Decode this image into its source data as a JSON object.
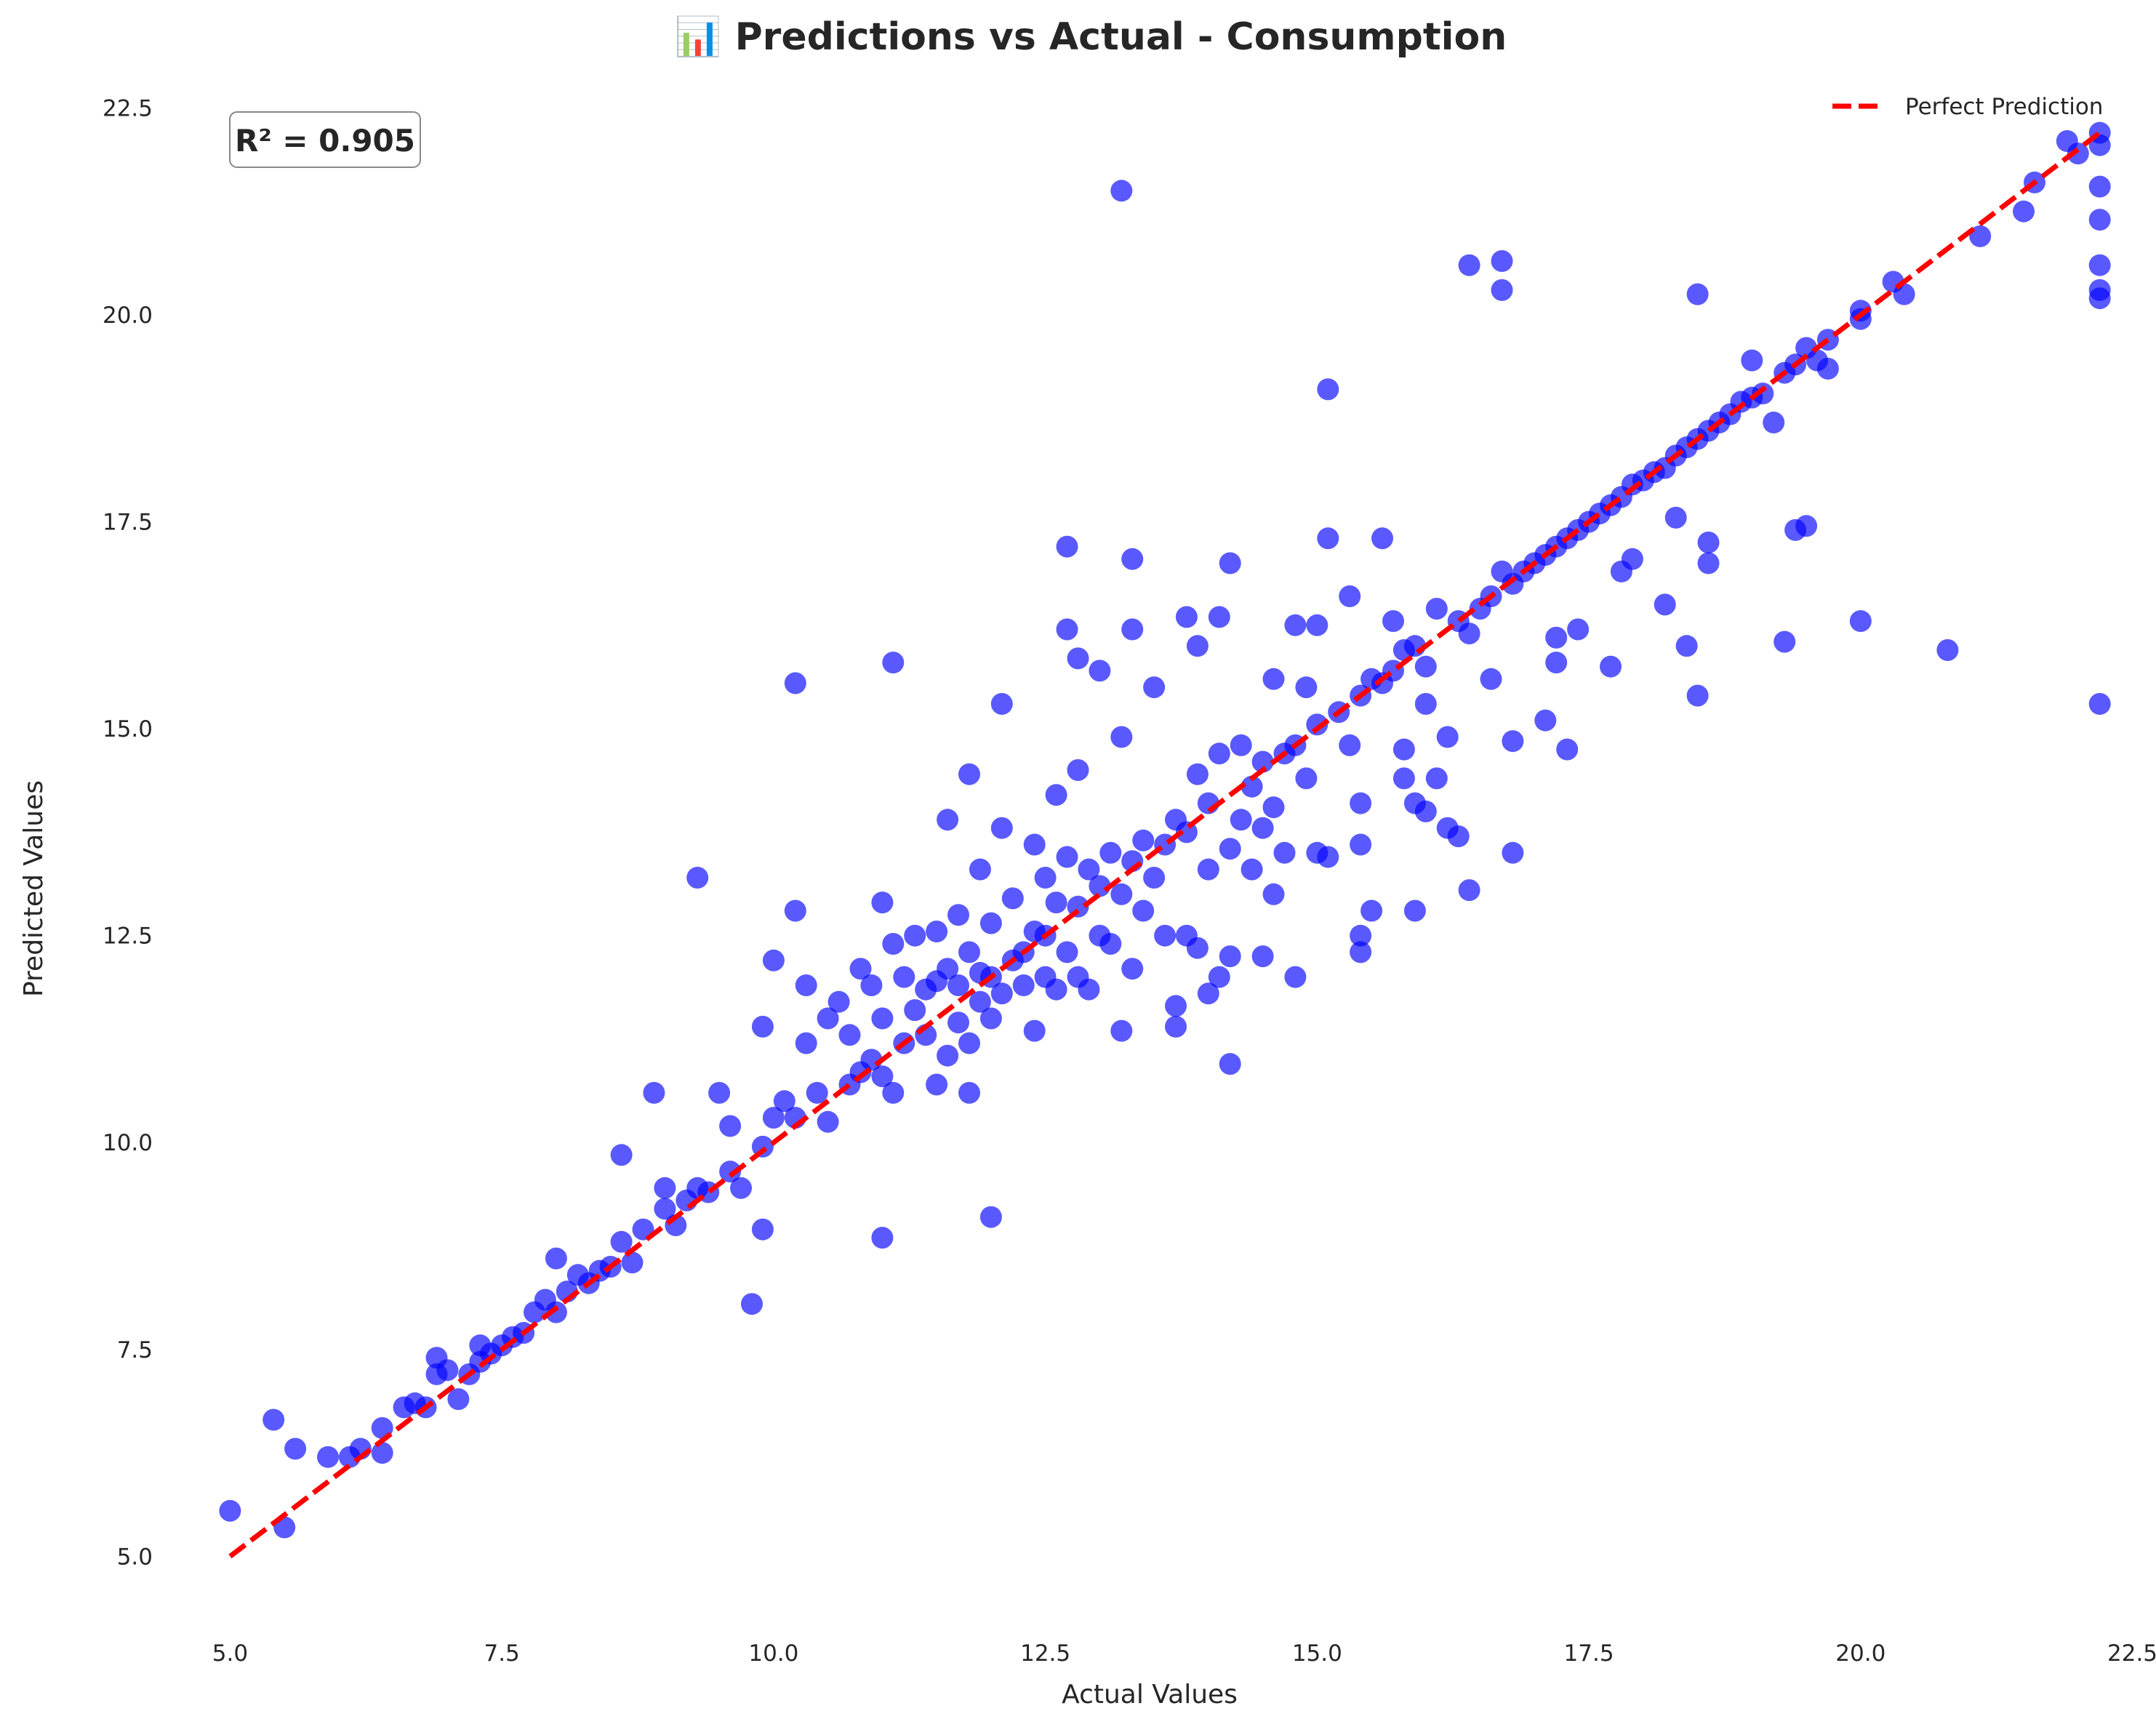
{
  "chart_data": {
    "type": "scatter",
    "title": "📊 Predictions vs Actual - Consumption",
    "xlabel": "Actual Values",
    "ylabel": "Predicted Values",
    "xlim": [
      4.85,
      22.55
    ],
    "ylim": [
      4.3,
      22.75
    ],
    "xticks": [
      "5.0",
      "7.5",
      "10.0",
      "12.5",
      "15.0",
      "17.5",
      "20.0",
      "22.5"
    ],
    "yticks": [
      "5.0",
      "7.5",
      "10.0",
      "12.5",
      "15.0",
      "17.5",
      "20.0",
      "22.5"
    ],
    "grid": false,
    "legend": {
      "placement": "top-right",
      "entries": [
        "Perfect Prediction"
      ]
    },
    "annotation": "R² = 0.905",
    "series": [
      {
        "name": "Perfect Prediction",
        "kind": "line",
        "color": "#ff0000",
        "style": "dashed",
        "x": [
          5.0,
          22.2
        ],
        "y": [
          5.0,
          22.2
        ]
      },
      {
        "kind": "scatter",
        "color": "#0000ff",
        "opacity": 0.65,
        "points": [
          [
            5.0,
            5.55
          ],
          [
            5.4,
            6.65
          ],
          [
            5.5,
            5.35
          ],
          [
            5.6,
            6.3
          ],
          [
            5.9,
            6.2
          ],
          [
            6.1,
            6.2
          ],
          [
            6.2,
            6.3
          ],
          [
            6.4,
            6.25
          ],
          [
            6.4,
            6.55
          ],
          [
            6.6,
            6.8
          ],
          [
            6.7,
            6.85
          ],
          [
            6.8,
            6.8
          ],
          [
            6.9,
            7.2
          ],
          [
            6.9,
            7.4
          ],
          [
            7.0,
            7.25
          ],
          [
            7.1,
            6.9
          ],
          [
            7.2,
            7.2
          ],
          [
            7.3,
            7.35
          ],
          [
            7.3,
            7.55
          ],
          [
            7.4,
            7.45
          ],
          [
            7.5,
            7.55
          ],
          [
            7.6,
            7.65
          ],
          [
            7.7,
            7.7
          ],
          [
            7.8,
            7.95
          ],
          [
            7.9,
            8.1
          ],
          [
            8.0,
            7.95
          ],
          [
            8.0,
            8.6
          ],
          [
            8.1,
            8.2
          ],
          [
            8.2,
            8.4
          ],
          [
            8.3,
            8.3
          ],
          [
            8.4,
            8.45
          ],
          [
            8.5,
            8.5
          ],
          [
            8.6,
            8.8
          ],
          [
            8.6,
            9.85
          ],
          [
            8.7,
            8.55
          ],
          [
            8.8,
            8.95
          ],
          [
            8.9,
            10.6
          ],
          [
            9.0,
            9.2
          ],
          [
            9.0,
            9.45
          ],
          [
            9.1,
            9.0
          ],
          [
            9.2,
            9.3
          ],
          [
            9.3,
            9.45
          ],
          [
            9.3,
            13.2
          ],
          [
            9.4,
            9.4
          ],
          [
            9.5,
            10.6
          ],
          [
            9.6,
            9.65
          ],
          [
            9.6,
            10.2
          ],
          [
            9.7,
            9.45
          ],
          [
            9.8,
            8.05
          ],
          [
            9.9,
            8.95
          ],
          [
            9.9,
            9.95
          ],
          [
            9.9,
            11.4
          ],
          [
            10.0,
            10.3
          ],
          [
            10.0,
            12.2
          ],
          [
            10.1,
            10.5
          ],
          [
            10.2,
            10.3
          ],
          [
            10.2,
            12.8
          ],
          [
            10.2,
            15.55
          ],
          [
            10.3,
            11.2
          ],
          [
            10.3,
            11.9
          ],
          [
            10.4,
            10.6
          ],
          [
            10.5,
            11.5
          ],
          [
            10.5,
            10.25
          ],
          [
            10.6,
            11.7
          ],
          [
            10.7,
            10.7
          ],
          [
            10.7,
            11.3
          ],
          [
            10.8,
            10.85
          ],
          [
            10.8,
            12.1
          ],
          [
            10.9,
            11.0
          ],
          [
            10.9,
            11.9
          ],
          [
            11.0,
            8.85
          ],
          [
            11.0,
            10.8
          ],
          [
            11.0,
            11.5
          ],
          [
            11.0,
            12.9
          ],
          [
            11.1,
            10.6
          ],
          [
            11.1,
            12.4
          ],
          [
            11.1,
            15.8
          ],
          [
            11.2,
            11.2
          ],
          [
            11.2,
            12.0
          ],
          [
            11.3,
            11.6
          ],
          [
            11.3,
            12.5
          ],
          [
            11.4,
            11.3
          ],
          [
            11.4,
            11.85
          ],
          [
            11.5,
            10.7
          ],
          [
            11.5,
            11.95
          ],
          [
            11.5,
            12.55
          ],
          [
            11.6,
            11.05
          ],
          [
            11.6,
            12.1
          ],
          [
            11.6,
            13.9
          ],
          [
            11.7,
            11.45
          ],
          [
            11.7,
            11.9
          ],
          [
            11.7,
            12.75
          ],
          [
            11.8,
            10.6
          ],
          [
            11.8,
            11.2
          ],
          [
            11.8,
            12.3
          ],
          [
            11.8,
            14.45
          ],
          [
            11.9,
            11.7
          ],
          [
            11.9,
            12.05
          ],
          [
            11.9,
            13.3
          ],
          [
            12.0,
            11.5
          ],
          [
            12.0,
            12.0
          ],
          [
            12.0,
            9.1
          ],
          [
            12.0,
            12.65
          ],
          [
            12.1,
            11.8
          ],
          [
            12.1,
            13.8
          ],
          [
            12.1,
            15.3
          ],
          [
            12.2,
            12.2
          ],
          [
            12.2,
            12.95
          ],
          [
            12.3,
            11.9
          ],
          [
            12.3,
            12.3
          ],
          [
            12.4,
            11.35
          ],
          [
            12.4,
            12.55
          ],
          [
            12.4,
            13.6
          ],
          [
            12.5,
            12.0
          ],
          [
            12.5,
            12.5
          ],
          [
            12.5,
            13.2
          ],
          [
            12.6,
            11.85
          ],
          [
            12.6,
            12.9
          ],
          [
            12.6,
            14.2
          ],
          [
            12.7,
            12.3
          ],
          [
            12.7,
            13.45
          ],
          [
            12.7,
            16.2
          ],
          [
            12.7,
            17.2
          ],
          [
            12.8,
            12.0
          ],
          [
            12.8,
            12.85
          ],
          [
            12.8,
            14.5
          ],
          [
            12.8,
            15.85
          ],
          [
            12.9,
            11.85
          ],
          [
            12.9,
            13.3
          ],
          [
            13.0,
            12.5
          ],
          [
            13.0,
            13.1
          ],
          [
            13.0,
            15.7
          ],
          [
            13.1,
            12.4
          ],
          [
            13.1,
            13.5
          ],
          [
            13.2,
            11.35
          ],
          [
            13.2,
            13.0
          ],
          [
            13.2,
            14.9
          ],
          [
            13.2,
            21.5
          ],
          [
            13.3,
            12.1
          ],
          [
            13.3,
            13.4
          ],
          [
            13.3,
            16.2
          ],
          [
            13.3,
            17.05
          ],
          [
            13.4,
            12.8
          ],
          [
            13.4,
            13.65
          ],
          [
            13.5,
            13.2
          ],
          [
            13.5,
            15.5
          ],
          [
            13.6,
            12.5
          ],
          [
            13.6,
            13.6
          ],
          [
            13.7,
            11.4
          ],
          [
            13.7,
            11.65
          ],
          [
            13.7,
            13.9
          ],
          [
            13.8,
            12.5
          ],
          [
            13.8,
            13.75
          ],
          [
            13.8,
            16.35
          ],
          [
            13.9,
            12.35
          ],
          [
            13.9,
            14.45
          ],
          [
            13.9,
            16.0
          ],
          [
            14.0,
            11.8
          ],
          [
            14.0,
            13.3
          ],
          [
            14.0,
            14.1
          ],
          [
            14.1,
            12.0
          ],
          [
            14.1,
            14.7
          ],
          [
            14.1,
            16.35
          ],
          [
            14.2,
            10.95
          ],
          [
            14.2,
            12.25
          ],
          [
            14.2,
            13.55
          ],
          [
            14.2,
            17.0
          ],
          [
            14.3,
            13.9
          ],
          [
            14.3,
            14.8
          ],
          [
            14.4,
            13.3
          ],
          [
            14.4,
            14.3
          ],
          [
            14.5,
            12.25
          ],
          [
            14.5,
            13.8
          ],
          [
            14.5,
            14.6
          ],
          [
            14.6,
            13.0
          ],
          [
            14.6,
            14.05
          ],
          [
            14.6,
            15.6
          ],
          [
            14.7,
            13.5
          ],
          [
            14.7,
            14.7
          ],
          [
            14.8,
            12.0
          ],
          [
            14.8,
            14.8
          ],
          [
            14.8,
            16.25
          ],
          [
            14.9,
            14.4
          ],
          [
            14.9,
            15.5
          ],
          [
            15.0,
            13.5
          ],
          [
            15.0,
            15.05
          ],
          [
            15.0,
            16.25
          ],
          [
            15.1,
            13.45
          ],
          [
            15.1,
            17.3
          ],
          [
            15.1,
            19.1
          ],
          [
            15.2,
            15.2
          ],
          [
            15.3,
            14.8
          ],
          [
            15.3,
            16.6
          ],
          [
            15.4,
            12.3
          ],
          [
            15.4,
            12.5
          ],
          [
            15.4,
            13.6
          ],
          [
            15.4,
            14.1
          ],
          [
            15.4,
            15.4
          ],
          [
            15.5,
            12.8
          ],
          [
            15.5,
            15.6
          ],
          [
            15.6,
            15.55
          ],
          [
            15.6,
            17.3
          ],
          [
            15.7,
            15.7
          ],
          [
            15.7,
            16.3
          ],
          [
            15.8,
            14.4
          ],
          [
            15.8,
            14.75
          ],
          [
            15.8,
            15.95
          ],
          [
            15.9,
            12.8
          ],
          [
            15.9,
            14.1
          ],
          [
            15.9,
            16.0
          ],
          [
            16.0,
            14.0
          ],
          [
            16.0,
            15.3
          ],
          [
            16.0,
            15.75
          ],
          [
            16.1,
            14.4
          ],
          [
            16.1,
            16.45
          ],
          [
            16.2,
            13.8
          ],
          [
            16.2,
            14.9
          ],
          [
            16.3,
            13.7
          ],
          [
            16.3,
            16.3
          ],
          [
            16.4,
            13.05
          ],
          [
            16.4,
            16.15
          ],
          [
            16.4,
            20.6
          ],
          [
            16.5,
            16.45
          ],
          [
            16.6,
            15.6
          ],
          [
            16.6,
            16.6
          ],
          [
            16.7,
            16.9
          ],
          [
            16.7,
            20.3
          ],
          [
            16.7,
            20.65
          ],
          [
            16.8,
            13.5
          ],
          [
            16.8,
            14.85
          ],
          [
            16.8,
            16.75
          ],
          [
            16.9,
            16.9
          ],
          [
            17.0,
            17.0
          ],
          [
            17.1,
            15.1
          ],
          [
            17.1,
            17.1
          ],
          [
            17.2,
            15.8
          ],
          [
            17.2,
            16.1
          ],
          [
            17.2,
            17.2
          ],
          [
            17.3,
            14.75
          ],
          [
            17.3,
            17.3
          ],
          [
            17.4,
            16.2
          ],
          [
            17.4,
            17.4
          ],
          [
            17.5,
            17.5
          ],
          [
            17.6,
            17.6
          ],
          [
            17.7,
            15.75
          ],
          [
            17.7,
            17.7
          ],
          [
            17.8,
            16.9
          ],
          [
            17.8,
            17.8
          ],
          [
            17.9,
            17.05
          ],
          [
            17.9,
            17.95
          ],
          [
            18.0,
            18.0
          ],
          [
            18.1,
            18.1
          ],
          [
            18.2,
            16.5
          ],
          [
            18.2,
            18.15
          ],
          [
            18.3,
            17.55
          ],
          [
            18.3,
            18.3
          ],
          [
            18.4,
            16.0
          ],
          [
            18.4,
            18.4
          ],
          [
            18.5,
            15.4
          ],
          [
            18.5,
            18.5
          ],
          [
            18.5,
            20.25
          ],
          [
            18.6,
            17.0
          ],
          [
            18.6,
            17.25
          ],
          [
            18.6,
            18.6
          ],
          [
            18.7,
            18.7
          ],
          [
            18.8,
            18.8
          ],
          [
            18.9,
            18.95
          ],
          [
            19.0,
            19.0
          ],
          [
            19.0,
            19.45
          ],
          [
            19.1,
            19.05
          ],
          [
            19.2,
            18.7
          ],
          [
            19.3,
            16.05
          ],
          [
            19.3,
            19.3
          ],
          [
            19.4,
            17.4
          ],
          [
            19.4,
            19.4
          ],
          [
            19.5,
            17.45
          ],
          [
            19.5,
            19.6
          ],
          [
            19.6,
            19.45
          ],
          [
            19.7,
            19.35
          ],
          [
            19.7,
            19.7
          ],
          [
            20.0,
            16.3
          ],
          [
            20.0,
            19.95
          ],
          [
            20.0,
            20.05
          ],
          [
            20.3,
            20.4
          ],
          [
            20.4,
            20.25
          ],
          [
            20.8,
            15.95
          ],
          [
            21.1,
            20.95
          ],
          [
            21.5,
            21.25
          ],
          [
            21.6,
            21.6
          ],
          [
            21.9,
            22.1
          ],
          [
            22.0,
            21.95
          ],
          [
            22.2,
            15.3
          ],
          [
            22.2,
            20.2
          ],
          [
            22.2,
            20.3
          ],
          [
            22.2,
            20.6
          ],
          [
            22.2,
            21.15
          ],
          [
            22.2,
            21.55
          ],
          [
            22.2,
            22.05
          ],
          [
            22.2,
            22.2
          ]
        ]
      }
    ]
  }
}
